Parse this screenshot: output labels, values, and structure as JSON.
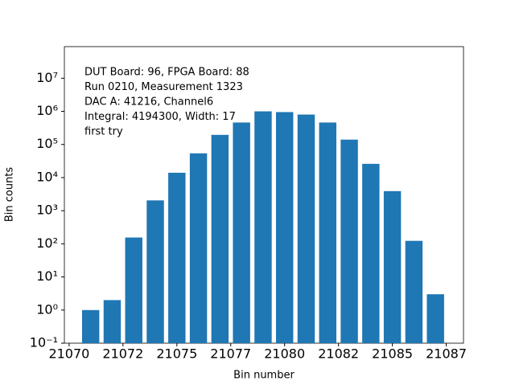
{
  "chart_data": {
    "type": "bar",
    "xlabel": "Bin number",
    "ylabel": "Bin counts",
    "annotation": [
      "DUT Board: 96, FPGA Board: 88",
      "Run 0210, Measurement 1323",
      "DAC A: 41216, Channel6",
      "Integral: 4194300, Width: 17",
      "first try"
    ],
    "x": [
      21071,
      21072,
      21073,
      21074,
      21075,
      21076,
      21077,
      21078,
      21079,
      21080,
      21081,
      21082,
      21083,
      21084,
      21085,
      21086,
      21087
    ],
    "values": [
      1,
      2,
      155,
      2050,
      14000,
      54000,
      195000,
      460000,
      1000000,
      950000,
      800000,
      460000,
      140000,
      26000,
      3900,
      123,
      3
    ],
    "color": "#1f77b4",
    "bar_width": 0.8,
    "yscale": "log",
    "xlim": [
      21069.78,
      21088.3
    ],
    "ylim": [
      0.1,
      90000000
    ],
    "xticks": [
      21070,
      {
        "value": 21072.5,
        "label": "21072"
      },
      21075,
      {
        "value": 21077.5,
        "label": "21077"
      },
      21080,
      {
        "value": 21082.5,
        "label": "21082"
      },
      21085,
      {
        "value": 21087.5,
        "label": "21087"
      }
    ],
    "yticks": [
      {
        "value": 0.1,
        "label": "10⁻¹"
      },
      {
        "value": 1,
        "label": "10⁰"
      },
      {
        "value": 10,
        "label": "10¹"
      },
      {
        "value": 100,
        "label": "10²"
      },
      {
        "value": 1000,
        "label": "10³"
      },
      {
        "value": 10000,
        "label": "10⁴"
      },
      {
        "value": 100000,
        "label": "10⁵"
      },
      {
        "value": 1000000,
        "label": "10⁶"
      },
      {
        "value": 10000000,
        "label": "10⁷"
      }
    ]
  }
}
